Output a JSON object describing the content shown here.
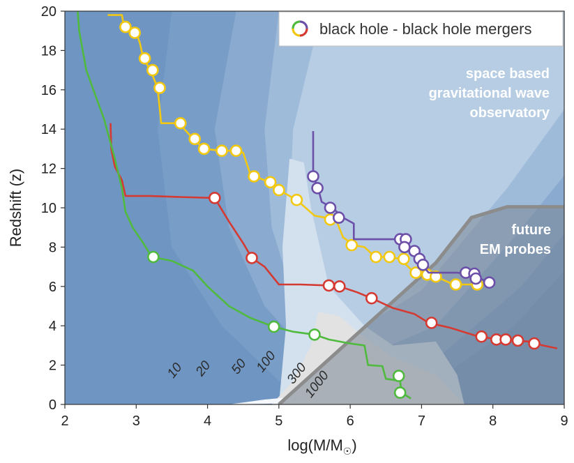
{
  "chart_data": {
    "type": "line",
    "title": "",
    "xlabel": "log(M/M",
    "xlabel_suffix": ")",
    "ylabel": "Redshift (z)",
    "xlim": [
      2,
      9
    ],
    "ylim": [
      0,
      20
    ],
    "xticks": [
      2,
      3,
      4,
      5,
      6,
      7,
      8,
      9
    ],
    "yticks": [
      0,
      2,
      4,
      6,
      8,
      10,
      12,
      14,
      16,
      18,
      20
    ],
    "legend": {
      "label": "black hole - black hole mergers",
      "placement": "top-right"
    },
    "annotations": {
      "space": [
        "space based",
        "gravitational wave",
        "observatory"
      ],
      "em": [
        "future",
        "EM probes"
      ]
    },
    "contour_labels": [
      "10",
      "20",
      "50",
      "100",
      "300",
      "1000"
    ],
    "colors": {
      "background": "#6f96c2",
      "contour_levels": [
        "#789dc7",
        "#8aaad0",
        "#9fbbda",
        "#b7cde4",
        "#d3e0ee",
        "#e2e2e2"
      ],
      "em_region": "#7a8796",
      "em_line": "#8c8c8c",
      "text_light": "#ffffff",
      "contour_label": "#2b2b2b"
    },
    "series": [
      {
        "name": "yellow",
        "color": "#f2c811",
        "line": [
          [
            2.6,
            19.8
          ],
          [
            2.8,
            19.8
          ],
          [
            2.82,
            19.4
          ],
          [
            2.9,
            19.2
          ],
          [
            3.0,
            18.9
          ],
          [
            3.05,
            18.4
          ],
          [
            3.1,
            17.6
          ],
          [
            3.2,
            17.0
          ],
          [
            3.3,
            16.1
          ],
          [
            3.35,
            14.3
          ],
          [
            3.6,
            14.3
          ],
          [
            3.7,
            13.9
          ],
          [
            3.8,
            13.5
          ],
          [
            3.95,
            13.0
          ],
          [
            4.2,
            12.9
          ],
          [
            4.4,
            12.9
          ],
          [
            4.5,
            12.8
          ],
          [
            4.6,
            11.7
          ],
          [
            4.8,
            11.4
          ],
          [
            5.0,
            10.9
          ],
          [
            5.25,
            10.4
          ],
          [
            5.5,
            9.6
          ],
          [
            5.8,
            9.4
          ],
          [
            5.9,
            8.5
          ],
          [
            6.05,
            8.1
          ],
          [
            6.2,
            8.0
          ],
          [
            6.35,
            7.5
          ],
          [
            6.55,
            7.5
          ],
          [
            6.7,
            7.4
          ],
          [
            6.9,
            6.7
          ],
          [
            7.05,
            6.6
          ],
          [
            7.2,
            6.5
          ],
          [
            7.45,
            6.1
          ],
          [
            7.7,
            6.1
          ],
          [
            7.85,
            6.0
          ]
        ],
        "points": [
          [
            2.85,
            19.2
          ],
          [
            2.98,
            18.9
          ],
          [
            3.12,
            17.6
          ],
          [
            3.23,
            17.0
          ],
          [
            3.33,
            16.1
          ],
          [
            3.62,
            14.3
          ],
          [
            3.82,
            13.5
          ],
          [
            3.95,
            13.0
          ],
          [
            4.2,
            12.9
          ],
          [
            4.4,
            12.9
          ],
          [
            4.65,
            11.6
          ],
          [
            4.88,
            11.3
          ],
          [
            5.0,
            10.9
          ],
          [
            5.25,
            10.4
          ],
          [
            5.72,
            9.4
          ],
          [
            6.02,
            8.1
          ],
          [
            6.36,
            7.5
          ],
          [
            6.55,
            7.5
          ],
          [
            6.75,
            7.4
          ],
          [
            6.92,
            6.7
          ],
          [
            7.08,
            6.6
          ],
          [
            7.2,
            6.5
          ],
          [
            7.48,
            6.1
          ],
          [
            7.78,
            6.1
          ]
        ]
      },
      {
        "name": "red",
        "color": "#d53a32",
        "line": [
          [
            2.64,
            14.3
          ],
          [
            2.65,
            13.0
          ],
          [
            2.7,
            12.1
          ],
          [
            2.8,
            11.4
          ],
          [
            2.85,
            10.6
          ],
          [
            3.2,
            10.6
          ],
          [
            3.6,
            10.55
          ],
          [
            4.1,
            10.5
          ],
          [
            4.3,
            9.3
          ],
          [
            4.5,
            8.2
          ],
          [
            4.62,
            7.45
          ],
          [
            4.8,
            7.0
          ],
          [
            5.0,
            6.1
          ],
          [
            5.3,
            6.1
          ],
          [
            5.7,
            6.05
          ],
          [
            5.85,
            6.0
          ],
          [
            6.1,
            5.7
          ],
          [
            6.3,
            5.4
          ],
          [
            6.6,
            4.9
          ],
          [
            6.9,
            4.6
          ],
          [
            7.1,
            4.15
          ],
          [
            7.4,
            3.9
          ],
          [
            7.8,
            3.45
          ],
          [
            8.1,
            3.3
          ],
          [
            8.5,
            3.2
          ],
          [
            8.7,
            3.0
          ],
          [
            8.9,
            2.85
          ]
        ],
        "points": [
          [
            4.1,
            10.5
          ],
          [
            4.62,
            7.45
          ],
          [
            5.7,
            6.05
          ],
          [
            5.85,
            6.0
          ],
          [
            6.3,
            5.4
          ],
          [
            7.14,
            4.15
          ],
          [
            7.84,
            3.45
          ],
          [
            8.05,
            3.3
          ],
          [
            8.18,
            3.3
          ],
          [
            8.35,
            3.25
          ],
          [
            8.58,
            3.1
          ]
        ]
      },
      {
        "name": "green",
        "color": "#4fba3e",
        "line": [
          [
            2.18,
            20.0
          ],
          [
            2.2,
            19.0
          ],
          [
            2.3,
            17.0
          ],
          [
            2.4,
            16.0
          ],
          [
            2.55,
            14.5
          ],
          [
            2.7,
            12.5
          ],
          [
            2.8,
            11.0
          ],
          [
            2.85,
            9.8
          ],
          [
            2.95,
            9.0
          ],
          [
            3.1,
            8.2
          ],
          [
            3.22,
            7.5
          ],
          [
            3.5,
            7.3
          ],
          [
            3.8,
            6.8
          ],
          [
            4.0,
            6.0
          ],
          [
            4.3,
            5.0
          ],
          [
            4.6,
            4.4
          ],
          [
            4.93,
            3.95
          ],
          [
            5.2,
            3.7
          ],
          [
            5.5,
            3.55
          ],
          [
            5.7,
            3.3
          ],
          [
            6.0,
            3.1
          ],
          [
            6.2,
            3.0
          ],
          [
            6.25,
            2.0
          ],
          [
            6.45,
            1.95
          ],
          [
            6.5,
            1.3
          ],
          [
            6.7,
            1.2
          ],
          [
            6.72,
            0.6
          ],
          [
            6.85,
            0.3
          ]
        ],
        "points": [
          [
            3.24,
            7.5
          ],
          [
            4.93,
            3.95
          ],
          [
            5.5,
            3.55
          ],
          [
            6.68,
            1.45
          ],
          [
            6.7,
            0.6
          ]
        ]
      },
      {
        "name": "purple",
        "color": "#6b4fa8",
        "line": [
          [
            5.48,
            13.9
          ],
          [
            5.48,
            11.6
          ],
          [
            5.55,
            11.0
          ],
          [
            5.6,
            10.3
          ],
          [
            5.75,
            10.0
          ],
          [
            5.9,
            9.5
          ],
          [
            6.05,
            9.2
          ],
          [
            6.05,
            8.4
          ],
          [
            6.7,
            8.4
          ],
          [
            6.8,
            8.0
          ],
          [
            6.9,
            7.7
          ],
          [
            7.0,
            7.1
          ],
          [
            7.1,
            6.7
          ],
          [
            7.5,
            6.7
          ],
          [
            7.7,
            6.6
          ],
          [
            7.95,
            6.2
          ]
        ],
        "points": [
          [
            5.48,
            11.6
          ],
          [
            5.54,
            11.0
          ],
          [
            5.72,
            10.0
          ],
          [
            5.84,
            9.5
          ],
          [
            6.7,
            8.4
          ],
          [
            6.78,
            8.4
          ],
          [
            6.76,
            8.0
          ],
          [
            6.9,
            7.8
          ],
          [
            6.97,
            7.4
          ],
          [
            7.02,
            7.1
          ],
          [
            7.62,
            6.7
          ],
          [
            7.74,
            6.65
          ],
          [
            7.76,
            6.4
          ],
          [
            7.95,
            6.2
          ]
        ]
      }
    ]
  }
}
